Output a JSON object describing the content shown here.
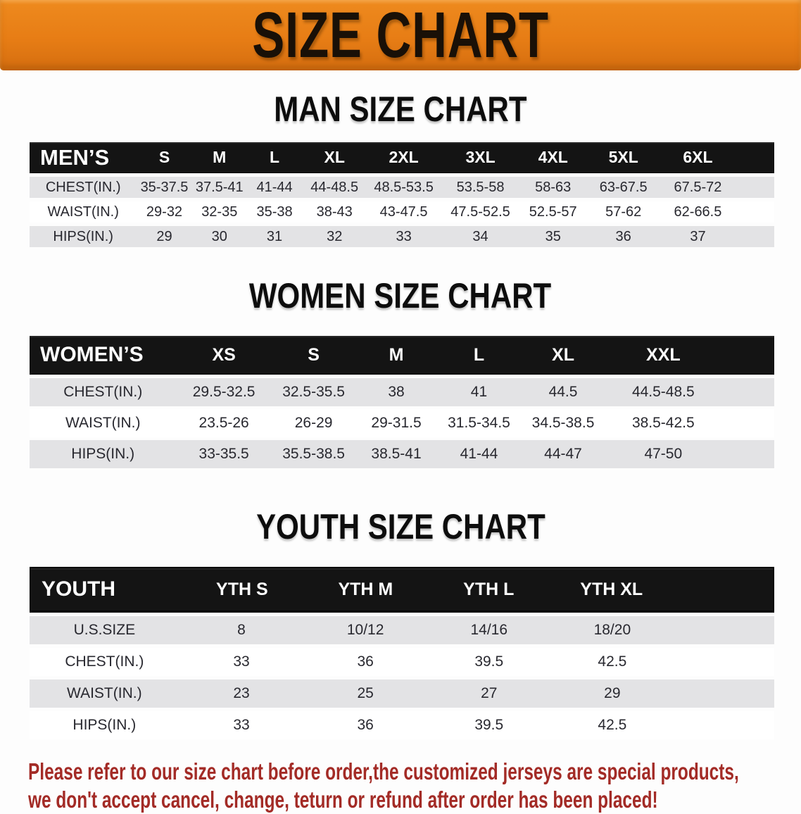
{
  "banner": {
    "title": "SIZE CHART"
  },
  "colors": {
    "banner_orange": "#E77D15",
    "header_black": "#141414",
    "row_gray": "#E3E3E5",
    "row_white": "#FFFFFF",
    "note_red": "#A32B26"
  },
  "men": {
    "heading": "MAN SIZE CHART",
    "header": [
      "MEN’S",
      "S",
      "M",
      "L",
      "XL",
      "2XL",
      "3XL",
      "4XL",
      "5XL",
      "6XL"
    ],
    "rows": [
      {
        "label": "CHEST(IN.)",
        "values": [
          "35-37.5",
          "37.5-41",
          "41-44",
          "44-48.5",
          "48.5-53.5",
          "53.5-58",
          "58-63",
          "63-67.5",
          "67.5-72"
        ]
      },
      {
        "label": "WAIST(IN.)",
        "values": [
          "29-32",
          "32-35",
          "35-38",
          "38-43",
          "43-47.5",
          "47.5-52.5",
          "52.5-57",
          "57-62",
          "62-66.5"
        ]
      },
      {
        "label": "HIPS(IN.)",
        "values": [
          "29",
          "30",
          "31",
          "32",
          "33",
          "34",
          "35",
          "36",
          "37"
        ]
      }
    ]
  },
  "women": {
    "heading": "WOMEN SIZE CHART",
    "header": [
      "WOMEN’S",
      "XS",
      "S",
      "M",
      "L",
      "XL",
      "XXL"
    ],
    "rows": [
      {
        "label": "CHEST(IN.)",
        "values": [
          "29.5-32.5",
          "32.5-35.5",
          "38",
          "41",
          "44.5",
          "44.5-48.5"
        ]
      },
      {
        "label": "WAIST(IN.)",
        "values": [
          "23.5-26",
          "26-29",
          "29-31.5",
          "31.5-34.5",
          "34.5-38.5",
          "38.5-42.5"
        ]
      },
      {
        "label": "HIPS(IN.)",
        "values": [
          "33-35.5",
          "35.5-38.5",
          "38.5-41",
          "41-44",
          "44-47",
          "47-50"
        ]
      }
    ]
  },
  "youth": {
    "heading": "YOUTH SIZE CHART",
    "header": [
      "YOUTH",
      "YTH S",
      "YTH M",
      "YTH L",
      "YTH XL"
    ],
    "rows": [
      {
        "label": "U.S.SIZE",
        "values": [
          "8",
          "10/12",
          "14/16",
          "18/20"
        ]
      },
      {
        "label": "CHEST(IN.)",
        "values": [
          "33",
          "36",
          "39.5",
          "42.5"
        ]
      },
      {
        "label": "WAIST(IN.)",
        "values": [
          "23",
          "25",
          "27",
          "29"
        ]
      },
      {
        "label": "HIPS(IN.)",
        "values": [
          "33",
          "36",
          "39.5",
          "42.5"
        ]
      }
    ]
  },
  "note": {
    "line1": "Please refer to our size chart before order,the customized jerseys are special products,",
    "line2": "we don't accept cancel, change, teturn or refund after order has been placed!"
  }
}
